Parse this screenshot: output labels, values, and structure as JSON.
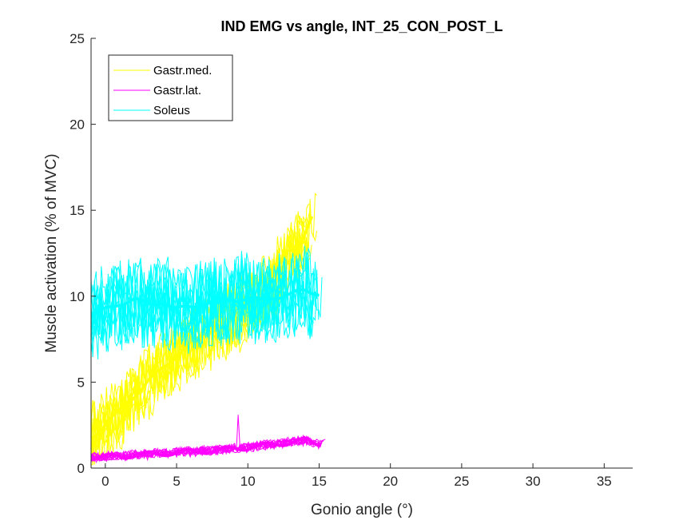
{
  "chart_data": {
    "type": "line",
    "title": "IND EMG vs angle, INT_25_CON_POST_L",
    "xlabel": "Gonio angle (°)",
    "ylabel": "Muscle activation (% of MVC)",
    "xlim": [
      -1,
      37
    ],
    "ylim": [
      0,
      25
    ],
    "xticks": [
      0,
      5,
      10,
      15,
      20,
      25,
      30,
      35
    ],
    "yticks": [
      0,
      5,
      10,
      15,
      20,
      25
    ],
    "legend_position": "top-left",
    "grid": false,
    "series": [
      {
        "name": "Gastr.med.",
        "color": "#FFFF00",
        "mean_x": [
          -1,
          0,
          1,
          2,
          3,
          4,
          5,
          6,
          7,
          8,
          9,
          10,
          11,
          12,
          13,
          14,
          14.5
        ],
        "mean_y": [
          1.8,
          2.5,
          3.3,
          4.2,
          5.0,
          5.8,
          6.6,
          7.2,
          7.8,
          8.3,
          8.8,
          9.4,
          10.2,
          11.2,
          12.3,
          13.5,
          14.5
        ],
        "noise_amplitude": 2.2
      },
      {
        "name": "Gastr.lat.",
        "color": "#FF00FF",
        "mean_x": [
          -1,
          0,
          2,
          4,
          6,
          8,
          10,
          12,
          14,
          15
        ],
        "mean_y": [
          0.6,
          0.65,
          0.75,
          0.85,
          0.95,
          1.05,
          1.2,
          1.4,
          1.6,
          1.4
        ],
        "noise_amplitude": 0.3,
        "spike": {
          "x": 9.3,
          "y": 3.1
        }
      },
      {
        "name": "Soleus",
        "color": "#00FFFF",
        "mean_x": [
          -1,
          0,
          1,
          2,
          3,
          4,
          5,
          6,
          7,
          8,
          9,
          10,
          11,
          12,
          13,
          14,
          15
        ],
        "mean_y": [
          8.8,
          9.2,
          9.6,
          9.8,
          9.5,
          9.7,
          9.2,
          9.4,
          9.6,
          9.7,
          9.8,
          9.9,
          9.7,
          10.0,
          10.1,
          10.3,
          10.2
        ],
        "noise_amplitude": 2.6
      }
    ]
  }
}
